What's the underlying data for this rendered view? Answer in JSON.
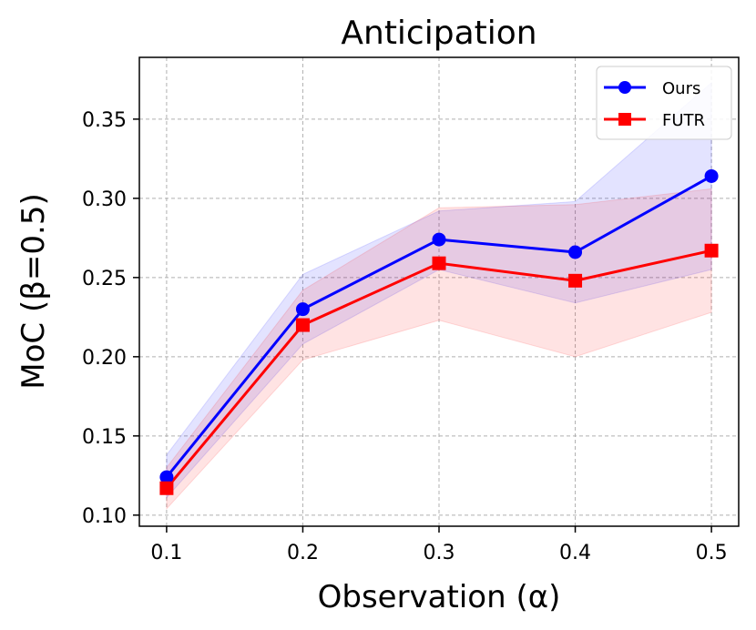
{
  "chart_data": {
    "type": "line",
    "title": "Anticipation",
    "xlabel": "Observation (α)",
    "ylabel": "MoC (β=0.5)",
    "x": [
      0.1,
      0.2,
      0.3,
      0.4,
      0.5
    ],
    "x_tick_labels": [
      "0.1",
      "0.2",
      "0.3",
      "0.4",
      "0.5"
    ],
    "y_ticks": [
      0.1,
      0.15,
      0.2,
      0.25,
      0.3,
      0.35
    ],
    "y_tick_labels": [
      "0.10",
      "0.15",
      "0.20",
      "0.25",
      "0.30",
      "0.35"
    ],
    "xlim": [
      0.08,
      0.52
    ],
    "ylim": [
      0.093,
      0.389
    ],
    "grid": true,
    "legend_position": "top-right",
    "series": [
      {
        "name": "Ours",
        "color": "#0000ff",
        "marker": "circle",
        "values": [
          0.124,
          0.23,
          0.274,
          0.266,
          0.314
        ],
        "band_low": [
          0.111,
          0.208,
          0.255,
          0.234,
          0.255
        ],
        "band_high": [
          0.138,
          0.252,
          0.292,
          0.298,
          0.373
        ]
      },
      {
        "name": "FUTR",
        "color": "#ff0000",
        "marker": "square",
        "values": [
          0.117,
          0.22,
          0.259,
          0.248,
          0.267
        ],
        "band_low": [
          0.104,
          0.198,
          0.223,
          0.2,
          0.228
        ],
        "band_high": [
          0.13,
          0.242,
          0.294,
          0.296,
          0.306
        ]
      }
    ]
  }
}
